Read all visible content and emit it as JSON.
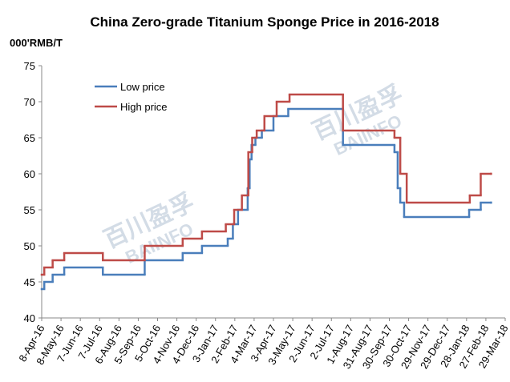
{
  "chart_data": {
    "type": "step",
    "title": "China Zero-grade  Titanium Sponge Price in 2016-2018",
    "y_label": "000'RMB/T",
    "watermark": [
      "百川盈孚",
      "BAIINFO"
    ],
    "legend": "top-left",
    "ylim": [
      40,
      75
    ],
    "yticks": [
      40,
      45,
      50,
      55,
      60,
      65,
      70,
      75
    ],
    "xlim": [
      "2016-04-08",
      "2018-03-29"
    ],
    "xticks": [
      {
        "value": "2016-04-08",
        "label": "8-Apr-16"
      },
      {
        "value": "2016-05-08",
        "label": "8-May-16"
      },
      {
        "value": "2016-06-07",
        "label": "7-Jun-16"
      },
      {
        "value": "2016-07-07",
        "label": "7-Jul-16"
      },
      {
        "value": "2016-08-06",
        "label": "6-Aug-16"
      },
      {
        "value": "2016-09-05",
        "label": "5-Sep-16"
      },
      {
        "value": "2016-10-05",
        "label": "5-Oct-16"
      },
      {
        "value": "2016-11-04",
        "label": "4-Nov-16"
      },
      {
        "value": "2016-12-04",
        "label": "4-Dec-16"
      },
      {
        "value": "2017-01-03",
        "label": "3-Jan-17"
      },
      {
        "value": "2017-02-02",
        "label": "2-Feb-17"
      },
      {
        "value": "2017-03-04",
        "label": "4-Mar-17"
      },
      {
        "value": "2017-04-03",
        "label": "3-Apr-17"
      },
      {
        "value": "2017-05-03",
        "label": "3-May-17"
      },
      {
        "value": "2017-06-02",
        "label": "2-Jun-17"
      },
      {
        "value": "2017-07-02",
        "label": "2-Jul-17"
      },
      {
        "value": "2017-08-01",
        "label": "1-Aug-17"
      },
      {
        "value": "2017-08-31",
        "label": "31-Aug-17"
      },
      {
        "value": "2017-09-30",
        "label": "30-Sep-17"
      },
      {
        "value": "2017-10-30",
        "label": "30-Oct-17"
      },
      {
        "value": "2017-11-29",
        "label": "29-Nov-17"
      },
      {
        "value": "2017-12-29",
        "label": "29-Dec-17"
      },
      {
        "value": "2018-01-28",
        "label": "28-Jan-18"
      },
      {
        "value": "2018-02-27",
        "label": "27-Feb-18"
      },
      {
        "value": "2018-03-29",
        "label": "29-Mar-18"
      }
    ],
    "series": [
      {
        "name": "Low price",
        "color": "#4a7ebb",
        "x": [
          "2016-04-08",
          "2016-04-12",
          "2016-04-25",
          "2016-05-13",
          "2016-07-12",
          "2016-09-15",
          "2016-11-13",
          "2016-12-13",
          "2017-01-22",
          "2017-01-30",
          "2017-02-07",
          "2017-02-22",
          "2017-02-25",
          "2017-02-28",
          "2017-03-06",
          "2017-03-16",
          "2017-04-03",
          "2017-04-26",
          "2017-07-20",
          "2017-10-08",
          "2017-10-13",
          "2017-10-17",
          "2017-10-23",
          "2018-02-01",
          "2018-02-19",
          "2018-03-07"
        ],
        "values": [
          44,
          45,
          46,
          47,
          46,
          48,
          49,
          50,
          51,
          53,
          55,
          58,
          62,
          64,
          65,
          66,
          68,
          69,
          64,
          63,
          58,
          56,
          54,
          55,
          56,
          56
        ]
      },
      {
        "name": "High price",
        "color": "#be4b48",
        "x": [
          "2016-04-08",
          "2016-04-12",
          "2016-04-25",
          "2016-05-13",
          "2016-07-12",
          "2016-09-15",
          "2016-11-13",
          "2016-12-13",
          "2017-01-19",
          "2017-02-01",
          "2017-02-13",
          "2017-02-23",
          "2017-03-01",
          "2017-03-08",
          "2017-03-20",
          "2017-04-08",
          "2017-04-28",
          "2017-07-20",
          "2017-10-08",
          "2017-10-17",
          "2017-10-27",
          "2018-02-02",
          "2018-02-19",
          "2018-03-07"
        ],
        "values": [
          46,
          47,
          48,
          49,
          48,
          50,
          51,
          52,
          53,
          55,
          57,
          63,
          65,
          66,
          68,
          70,
          71,
          66,
          65,
          60,
          56,
          57,
          60,
          60
        ]
      }
    ]
  }
}
